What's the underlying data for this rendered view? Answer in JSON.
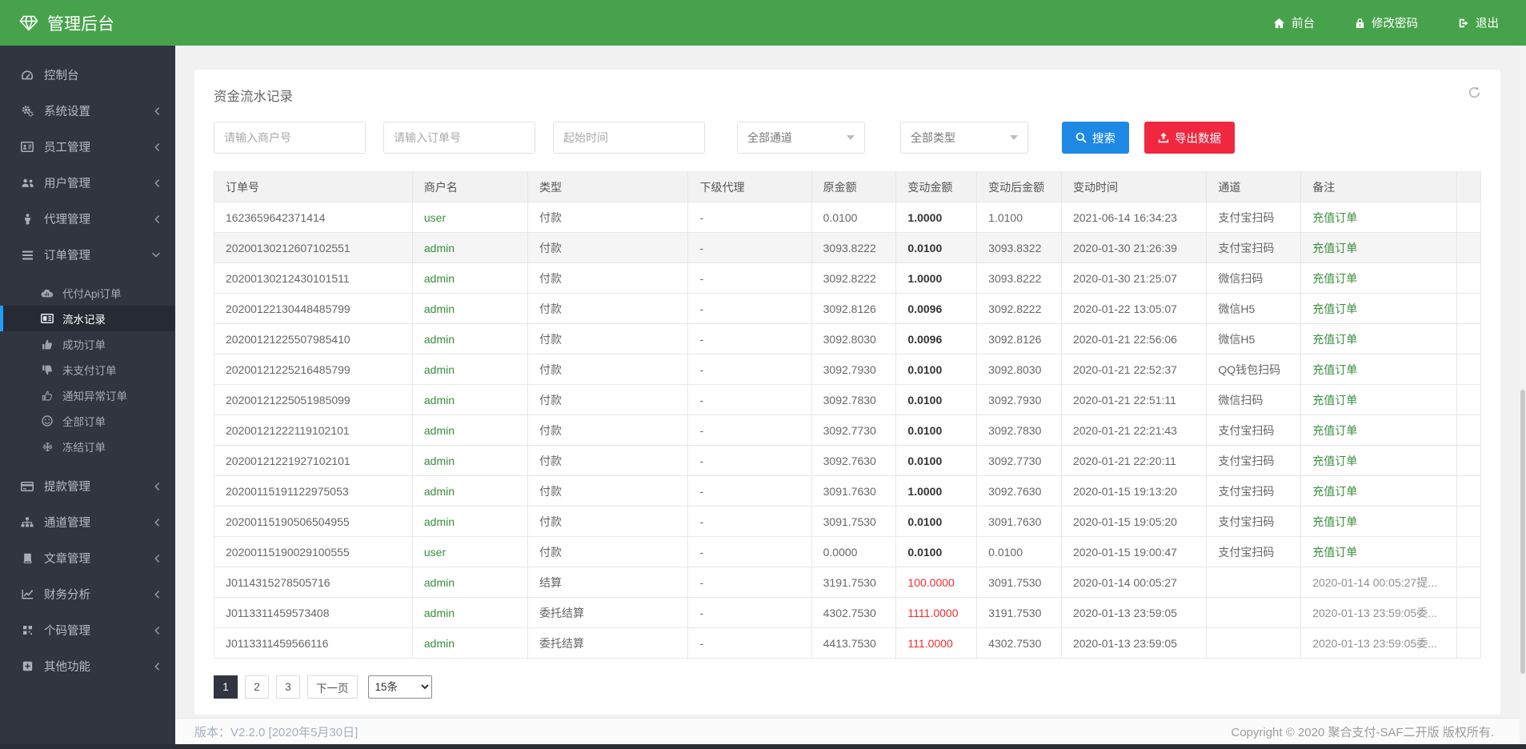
{
  "navbar": {
    "brand": {
      "logo_icon": "gem-icon",
      "title": "管理后台"
    },
    "links": [
      {
        "name": "frontend",
        "icon": "home-icon",
        "label": "前台"
      },
      {
        "name": "change-password",
        "icon": "lock-icon",
        "label": "修改密码"
      },
      {
        "name": "logout",
        "icon": "signout-icon",
        "label": "退出"
      }
    ]
  },
  "sidebar": {
    "items": [
      {
        "name": "dashboard",
        "icon": "gauge-icon",
        "label": "控制台",
        "expandable": false
      },
      {
        "name": "system-settings",
        "icon": "gears-icon",
        "label": "系统设置",
        "expandable": true
      },
      {
        "name": "staff-management",
        "icon": "idcard-icon",
        "label": "员工管理",
        "expandable": true
      },
      {
        "name": "user-management",
        "icon": "users-icon",
        "label": "用户管理",
        "expandable": true
      },
      {
        "name": "agent-management",
        "icon": "person-icon",
        "label": "代理管理",
        "expandable": true
      },
      {
        "name": "order-management",
        "icon": "bars-icon",
        "label": "订单管理",
        "expandable": true,
        "expanded": true,
        "children": [
          {
            "name": "api-orders",
            "icon": "cloud-icon",
            "label": "代付Api订单",
            "active": false
          },
          {
            "name": "flow-records",
            "icon": "newspaper-icon",
            "label": "流水记录",
            "active": true
          },
          {
            "name": "success-orders",
            "icon": "thumbs-up-icon",
            "label": "成功订单",
            "active": false
          },
          {
            "name": "unpaid-orders",
            "icon": "thumbs-down-icon",
            "label": "未支付订单",
            "active": false
          },
          {
            "name": "notify-abnormal-orders",
            "icon": "thumbs-up-outline-icon",
            "label": "通知异常订单",
            "active": false
          },
          {
            "name": "all-orders",
            "icon": "smile-icon",
            "label": "全部订单",
            "active": false
          },
          {
            "name": "frozen-orders",
            "icon": "snowflake-icon",
            "label": "冻结订单",
            "active": false
          }
        ]
      },
      {
        "name": "withdraw-management",
        "icon": "credit-card-icon",
        "label": "提款管理",
        "expandable": true
      },
      {
        "name": "channel-management",
        "icon": "sitemap-icon",
        "label": "通道管理",
        "expandable": true
      },
      {
        "name": "article-management",
        "icon": "book-icon",
        "label": "文章管理",
        "expandable": true
      },
      {
        "name": "finance-analysis",
        "icon": "chart-line-icon",
        "label": "财务分析",
        "expandable": true
      },
      {
        "name": "qrcode-management",
        "icon": "qrcode-icon",
        "label": "个码管理",
        "expandable": true
      },
      {
        "name": "other-functions",
        "icon": "plus-square-icon",
        "label": "其他功能",
        "expandable": true
      }
    ]
  },
  "main": {
    "title": "资金流水记录",
    "refresh_icon": "refresh-icon",
    "filters": {
      "merchant_placeholder": "请输入商户号",
      "order_placeholder": "请输入订单号",
      "time_placeholder": "起始时间",
      "channel_select": "全部通道",
      "type_select": "全部类型",
      "search_label": "搜索",
      "export_label": "导出数据"
    },
    "table": {
      "columns": [
        "订单号",
        "商户名",
        "类型",
        "下级代理",
        "原金额",
        "变动金额",
        "变动后金额",
        "变动时间",
        "通道",
        "备注",
        ""
      ],
      "rows": [
        {
          "order_no": "1623659642371414",
          "merchant": "user",
          "type": "付款",
          "agent": "-",
          "amount_before": "0.0100",
          "amount_change": "1.0000",
          "change_style": "dark",
          "amount_after": "1.0100",
          "time": "2021-06-14 16:34:23",
          "channel": "支付宝扫码",
          "remark": "充值订单",
          "remark_style": "green",
          "highlight": false
        },
        {
          "order_no": "20200130212607102551",
          "merchant": "admin",
          "type": "付款",
          "agent": "-",
          "amount_before": "3093.8222",
          "amount_change": "0.0100",
          "change_style": "dark",
          "amount_after": "3093.8322",
          "time": "2020-01-30 21:26:39",
          "channel": "支付宝扫码",
          "remark": "充值订单",
          "remark_style": "green",
          "highlight": true
        },
        {
          "order_no": "20200130212430101511",
          "merchant": "admin",
          "type": "付款",
          "agent": "-",
          "amount_before": "3092.8222",
          "amount_change": "1.0000",
          "change_style": "dark",
          "amount_after": "3093.8222",
          "time": "2020-01-30 21:25:07",
          "channel": "微信扫码",
          "remark": "充值订单",
          "remark_style": "green",
          "highlight": false
        },
        {
          "order_no": "20200122130448485799",
          "merchant": "admin",
          "type": "付款",
          "agent": "-",
          "amount_before": "3092.8126",
          "amount_change": "0.0096",
          "change_style": "dark",
          "amount_after": "3092.8222",
          "time": "2020-01-22 13:05:07",
          "channel": "微信H5",
          "remark": "充值订单",
          "remark_style": "green",
          "highlight": false
        },
        {
          "order_no": "20200121225507985410",
          "merchant": "admin",
          "type": "付款",
          "agent": "-",
          "amount_before": "3092.8030",
          "amount_change": "0.0096",
          "change_style": "dark",
          "amount_after": "3092.8126",
          "time": "2020-01-21 22:56:06",
          "channel": "微信H5",
          "remark": "充值订单",
          "remark_style": "green",
          "highlight": false
        },
        {
          "order_no": "20200121225216485799",
          "merchant": "admin",
          "type": "付款",
          "agent": "-",
          "amount_before": "3092.7930",
          "amount_change": "0.0100",
          "change_style": "dark",
          "amount_after": "3092.8030",
          "time": "2020-01-21 22:52:37",
          "channel": "QQ钱包扫码",
          "remark": "充值订单",
          "remark_style": "green",
          "highlight": false
        },
        {
          "order_no": "20200121225051985099",
          "merchant": "admin",
          "type": "付款",
          "agent": "-",
          "amount_before": "3092.7830",
          "amount_change": "0.0100",
          "change_style": "dark",
          "amount_after": "3092.7930",
          "time": "2020-01-21 22:51:11",
          "channel": "微信扫码",
          "remark": "充值订单",
          "remark_style": "green",
          "highlight": false
        },
        {
          "order_no": "20200121222119102101",
          "merchant": "admin",
          "type": "付款",
          "agent": "-",
          "amount_before": "3092.7730",
          "amount_change": "0.0100",
          "change_style": "dark",
          "amount_after": "3092.7830",
          "time": "2020-01-21 22:21:43",
          "channel": "支付宝扫码",
          "remark": "充值订单",
          "remark_style": "green",
          "highlight": false
        },
        {
          "order_no": "20200121221927102101",
          "merchant": "admin",
          "type": "付款",
          "agent": "-",
          "amount_before": "3092.7630",
          "amount_change": "0.0100",
          "change_style": "dark",
          "amount_after": "3092.7730",
          "time": "2020-01-21 22:20:11",
          "channel": "支付宝扫码",
          "remark": "充值订单",
          "remark_style": "green",
          "highlight": false
        },
        {
          "order_no": "20200115191122975053",
          "merchant": "admin",
          "type": "付款",
          "agent": "-",
          "amount_before": "3091.7630",
          "amount_change": "1.0000",
          "change_style": "dark",
          "amount_after": "3092.7630",
          "time": "2020-01-15 19:13:20",
          "channel": "支付宝扫码",
          "remark": "充值订单",
          "remark_style": "green",
          "highlight": false
        },
        {
          "order_no": "20200115190506504955",
          "merchant": "admin",
          "type": "付款",
          "agent": "-",
          "amount_before": "3091.7530",
          "amount_change": "0.0100",
          "change_style": "dark",
          "amount_after": "3091.7630",
          "time": "2020-01-15 19:05:20",
          "channel": "支付宝扫码",
          "remark": "充值订单",
          "remark_style": "green",
          "highlight": false
        },
        {
          "order_no": "20200115190029100555",
          "merchant": "user",
          "type": "付款",
          "agent": "-",
          "amount_before": "0.0000",
          "amount_change": "0.0100",
          "change_style": "dark",
          "amount_after": "0.0100",
          "time": "2020-01-15 19:00:47",
          "channel": "支付宝扫码",
          "remark": "充值订单",
          "remark_style": "green",
          "highlight": false
        },
        {
          "order_no": "J0114315278505716",
          "merchant": "admin",
          "type": "结算",
          "agent": "-",
          "amount_before": "3191.7530",
          "amount_change": "100.0000",
          "change_style": "red",
          "amount_after": "3091.7530",
          "time": "2020-01-14 00:05:27",
          "channel": "",
          "remark": "2020-01-14 00:05:27提...",
          "remark_style": "gray",
          "highlight": false
        },
        {
          "order_no": "J0113311459573408",
          "merchant": "admin",
          "type": "委托结算",
          "agent": "-",
          "amount_before": "4302.7530",
          "amount_change": "1111.0000",
          "change_style": "red",
          "amount_after": "3191.7530",
          "time": "2020-01-13 23:59:05",
          "channel": "",
          "remark": "2020-01-13 23:59:05委...",
          "remark_style": "gray",
          "highlight": false
        },
        {
          "order_no": "J0113311459566116",
          "merchant": "admin",
          "type": "委托结算",
          "agent": "-",
          "amount_before": "4413.7530",
          "amount_change": "111.0000",
          "change_style": "red",
          "amount_after": "4302.7530",
          "time": "2020-01-13 23:59:05",
          "channel": "",
          "remark": "2020-01-13 23:59:05委...",
          "remark_style": "gray",
          "highlight": false
        }
      ]
    },
    "pagination": {
      "pages": [
        "1",
        "2",
        "3"
      ],
      "active": "1",
      "next_label": "下一页",
      "page_size": "15条"
    }
  },
  "footer": {
    "version": "版本：V2.2.0 [2020年5月30日]",
    "copyright": "Copyright © 2020 聚合支付-SAF二开版 版权所有."
  },
  "colors": {
    "navbar_green": "#47A34B",
    "sidebar_dark": "#30353F",
    "active_item_blue": "#1E9FFF",
    "search_button_blue": "#1E88E5",
    "export_button_red": "#F1273F",
    "link_green": "#388E3C",
    "negative_red": "#F22C2C"
  }
}
